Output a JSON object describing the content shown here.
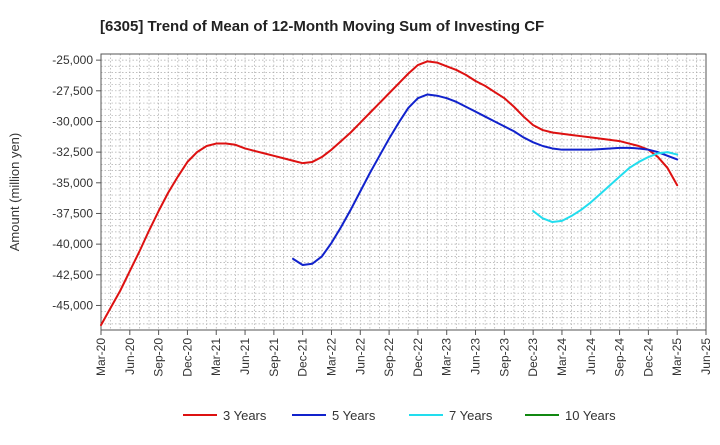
{
  "chart_data": {
    "type": "line",
    "title": "[6305]  Trend of Mean of 12-Month Moving Sum of Investing CF",
    "ylabel": "Amount (million yen)",
    "xlabel": "",
    "x_range": [
      "2020-03",
      "2025-06"
    ],
    "ylim": [
      -47000,
      -24500
    ],
    "yticks": [
      -25000,
      -27500,
      -30000,
      -32500,
      -35000,
      -37500,
      -40000,
      -42500,
      -45000
    ],
    "ytick_labels": [
      "-25,000",
      "-27,500",
      "-30,000",
      "-32,500",
      "-35,000",
      "-37,500",
      "-40,000",
      "-42,500",
      "-45,000"
    ],
    "xticks": [
      "2020-03",
      "2020-06",
      "2020-09",
      "2020-12",
      "2021-03",
      "2021-06",
      "2021-09",
      "2021-12",
      "2022-03",
      "2022-06",
      "2022-09",
      "2022-12",
      "2023-03",
      "2023-06",
      "2023-09",
      "2023-12",
      "2024-03",
      "2024-06",
      "2024-09",
      "2024-12",
      "2025-03",
      "2025-06"
    ],
    "xtick_labels": [
      "Mar-20",
      "Jun-20",
      "Sep-20",
      "Dec-20",
      "Mar-21",
      "Jun-21",
      "Sep-21",
      "Dec-21",
      "Mar-22",
      "Jun-22",
      "Sep-22",
      "Dec-22",
      "Mar-23",
      "Jun-23",
      "Sep-23",
      "Dec-23",
      "Mar-24",
      "Jun-24",
      "Sep-24",
      "Dec-24",
      "Mar-25",
      "Jun-25"
    ],
    "grid": true,
    "legend_position": "bottom",
    "series": [
      {
        "name": "3 Years",
        "color": "#dd1111",
        "points": [
          [
            "2020-03",
            -46600
          ],
          [
            "2020-04",
            -45200
          ],
          [
            "2020-05",
            -43800
          ],
          [
            "2020-06",
            -42200
          ],
          [
            "2020-07",
            -40600
          ],
          [
            "2020-08",
            -38900
          ],
          [
            "2020-09",
            -37300
          ],
          [
            "2020-10",
            -35800
          ],
          [
            "2020-11",
            -34500
          ],
          [
            "2020-12",
            -33300
          ],
          [
            "2021-01",
            -32500
          ],
          [
            "2021-02",
            -32000
          ],
          [
            "2021-03",
            -31800
          ],
          [
            "2021-04",
            -31800
          ],
          [
            "2021-05",
            -31900
          ],
          [
            "2021-06",
            -32200
          ],
          [
            "2021-07",
            -32400
          ],
          [
            "2021-08",
            -32600
          ],
          [
            "2021-09",
            -32800
          ],
          [
            "2021-10",
            -33000
          ],
          [
            "2021-11",
            -33200
          ],
          [
            "2021-12",
            -33400
          ],
          [
            "2022-01",
            -33300
          ],
          [
            "2022-02",
            -32900
          ],
          [
            "2022-03",
            -32300
          ],
          [
            "2022-04",
            -31600
          ],
          [
            "2022-05",
            -30900
          ],
          [
            "2022-06",
            -30100
          ],
          [
            "2022-07",
            -29300
          ],
          [
            "2022-08",
            -28500
          ],
          [
            "2022-09",
            -27700
          ],
          [
            "2022-10",
            -26900
          ],
          [
            "2022-11",
            -26100
          ],
          [
            "2022-12",
            -25400
          ],
          [
            "2023-01",
            -25100
          ],
          [
            "2023-02",
            -25200
          ],
          [
            "2023-03",
            -25500
          ],
          [
            "2023-04",
            -25800
          ],
          [
            "2023-05",
            -26200
          ],
          [
            "2023-06",
            -26700
          ],
          [
            "2023-07",
            -27100
          ],
          [
            "2023-08",
            -27600
          ],
          [
            "2023-09",
            -28100
          ],
          [
            "2023-10",
            -28800
          ],
          [
            "2023-11",
            -29600
          ],
          [
            "2023-12",
            -30300
          ],
          [
            "2024-01",
            -30700
          ],
          [
            "2024-02",
            -30900
          ],
          [
            "2024-03",
            -31000
          ],
          [
            "2024-04",
            -31100
          ],
          [
            "2024-05",
            -31200
          ],
          [
            "2024-06",
            -31300
          ],
          [
            "2024-07",
            -31400
          ],
          [
            "2024-08",
            -31500
          ],
          [
            "2024-09",
            -31600
          ],
          [
            "2024-10",
            -31800
          ],
          [
            "2024-11",
            -32000
          ],
          [
            "2024-12",
            -32300
          ],
          [
            "2025-01",
            -32900
          ],
          [
            "2025-02",
            -33800
          ],
          [
            "2025-03",
            -35200
          ]
        ]
      },
      {
        "name": "5 Years",
        "color": "#1122cc",
        "points": [
          [
            "2021-11",
            -41200
          ],
          [
            "2021-12",
            -41700
          ],
          [
            "2022-01",
            -41600
          ],
          [
            "2022-02",
            -41000
          ],
          [
            "2022-03",
            -39900
          ],
          [
            "2022-04",
            -38600
          ],
          [
            "2022-05",
            -37200
          ],
          [
            "2022-06",
            -35700
          ],
          [
            "2022-07",
            -34200
          ],
          [
            "2022-08",
            -32800
          ],
          [
            "2022-09",
            -31400
          ],
          [
            "2022-10",
            -30100
          ],
          [
            "2022-11",
            -28900
          ],
          [
            "2022-12",
            -28100
          ],
          [
            "2023-01",
            -27800
          ],
          [
            "2023-02",
            -27900
          ],
          [
            "2023-03",
            -28100
          ],
          [
            "2023-04",
            -28400
          ],
          [
            "2023-05",
            -28800
          ],
          [
            "2023-06",
            -29200
          ],
          [
            "2023-07",
            -29600
          ],
          [
            "2023-08",
            -30000
          ],
          [
            "2023-09",
            -30400
          ],
          [
            "2023-10",
            -30800
          ],
          [
            "2023-11",
            -31300
          ],
          [
            "2023-12",
            -31700
          ],
          [
            "2024-01",
            -32000
          ],
          [
            "2024-02",
            -32200
          ],
          [
            "2024-03",
            -32300
          ],
          [
            "2024-04",
            -32300
          ],
          [
            "2024-05",
            -32300
          ],
          [
            "2024-06",
            -32300
          ],
          [
            "2024-07",
            -32250
          ],
          [
            "2024-08",
            -32200
          ],
          [
            "2024-09",
            -32150
          ],
          [
            "2024-10",
            -32150
          ],
          [
            "2024-11",
            -32200
          ],
          [
            "2024-12",
            -32300
          ],
          [
            "2025-01",
            -32500
          ],
          [
            "2025-02",
            -32800
          ],
          [
            "2025-03",
            -33100
          ]
        ]
      },
      {
        "name": "7 Years",
        "color": "#22ddee",
        "points": [
          [
            "2023-12",
            -37300
          ],
          [
            "2024-01",
            -37900
          ],
          [
            "2024-02",
            -38200
          ],
          [
            "2024-03",
            -38100
          ],
          [
            "2024-04",
            -37700
          ],
          [
            "2024-05",
            -37200
          ],
          [
            "2024-06",
            -36600
          ],
          [
            "2024-07",
            -35900
          ],
          [
            "2024-08",
            -35200
          ],
          [
            "2024-09",
            -34500
          ],
          [
            "2024-10",
            -33800
          ],
          [
            "2024-11",
            -33300
          ],
          [
            "2024-12",
            -32900
          ],
          [
            "2025-01",
            -32600
          ],
          [
            "2025-02",
            -32500
          ],
          [
            "2025-03",
            -32700
          ]
        ]
      },
      {
        "name": "10 Years",
        "color": "#118811",
        "points": []
      }
    ]
  }
}
